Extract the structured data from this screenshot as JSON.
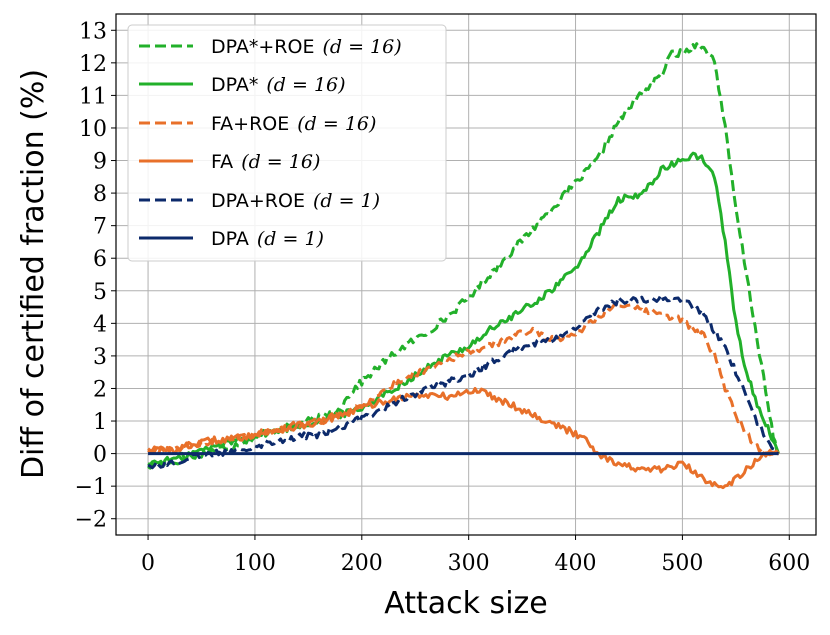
{
  "chart_data": {
    "type": "line",
    "title": "",
    "xlabel": "Attack size",
    "ylabel": "Diff of certified fraction (%)",
    "xlim": [
      -30,
      625
    ],
    "ylim": [
      -2.5,
      13.5
    ],
    "xticks": [
      0,
      100,
      200,
      300,
      400,
      500,
      600
    ],
    "xtick_labels": [
      "0",
      "100",
      "200",
      "300",
      "400",
      "500",
      "600"
    ],
    "yticks": [
      -2,
      -1,
      0,
      1,
      2,
      3,
      4,
      5,
      6,
      7,
      8,
      9,
      10,
      11,
      12,
      13
    ],
    "ytick_labels": [
      "−2",
      "−1",
      "0",
      "1",
      "2",
      "3",
      "4",
      "5",
      "6",
      "7",
      "8",
      "9",
      "10",
      "11",
      "12",
      "13"
    ],
    "grid": true,
    "legend_position": "top-left",
    "series": [
      {
        "name": "DPA*+ROE",
        "label_math": "(d = 16)",
        "color": "#22b02a",
        "dash": "dashed",
        "x": [
          0,
          20,
          40,
          60,
          80,
          100,
          120,
          140,
          160,
          180,
          190,
          200,
          220,
          240,
          260,
          280,
          300,
          320,
          340,
          360,
          380,
          400,
          420,
          440,
          460,
          480,
          490,
          500,
          510,
          515,
          520,
          530,
          540,
          550,
          560,
          570,
          580,
          585,
          590
        ],
        "y": [
          -0.4,
          -0.3,
          -0.1,
          0.1,
          0.25,
          0.5,
          0.7,
          0.9,
          1.1,
          1.4,
          1.9,
          2.2,
          2.8,
          3.3,
          3.7,
          4.2,
          4.8,
          5.5,
          6.2,
          6.9,
          7.6,
          8.3,
          9.0,
          10.2,
          11.0,
          11.6,
          12.3,
          12.3,
          12.5,
          12.6,
          12.4,
          12.1,
          10.0,
          7.5,
          5.5,
          3.5,
          1.5,
          0.5,
          0.0
        ]
      },
      {
        "name": "DPA*",
        "label_math": "(d = 16)",
        "color": "#22b02a",
        "dash": "solid",
        "x": [
          0,
          20,
          40,
          60,
          80,
          100,
          120,
          140,
          160,
          180,
          200,
          220,
          240,
          260,
          280,
          300,
          320,
          340,
          360,
          380,
          400,
          420,
          440,
          460,
          480,
          500,
          510,
          520,
          530,
          540,
          550,
          560,
          570,
          580,
          585,
          590
        ],
        "y": [
          -0.3,
          -0.2,
          0.0,
          0.2,
          0.4,
          0.55,
          0.7,
          0.85,
          1.0,
          1.2,
          1.4,
          1.8,
          2.2,
          2.6,
          3.0,
          3.3,
          3.8,
          4.2,
          4.6,
          5.1,
          5.7,
          6.7,
          7.8,
          7.9,
          8.7,
          9.0,
          9.2,
          9.0,
          8.5,
          6.5,
          4.0,
          2.5,
          1.5,
          0.8,
          0.3,
          0.0
        ]
      },
      {
        "name": "FA+ROE",
        "label_math": "(d = 16)",
        "color": "#e8702a",
        "dash": "dashed",
        "x": [
          0,
          20,
          40,
          60,
          80,
          100,
          120,
          140,
          160,
          180,
          200,
          220,
          240,
          260,
          280,
          300,
          320,
          340,
          360,
          380,
          400,
          420,
          440,
          460,
          480,
          500,
          520,
          530,
          540,
          550,
          560,
          570,
          580,
          590
        ],
        "y": [
          0.1,
          0.15,
          0.25,
          0.35,
          0.45,
          0.6,
          0.75,
          0.9,
          1.0,
          1.2,
          1.5,
          1.9,
          2.3,
          2.6,
          2.9,
          3.1,
          3.3,
          3.6,
          3.8,
          3.5,
          3.7,
          4.2,
          4.6,
          4.4,
          4.3,
          4.1,
          3.6,
          3.0,
          2.0,
          1.2,
          0.6,
          0.2,
          0.05,
          0.0
        ]
      },
      {
        "name": "FA",
        "label_math": "(d = 16)",
        "color": "#e8702a",
        "dash": "solid",
        "x": [
          0,
          20,
          40,
          60,
          80,
          100,
          120,
          140,
          160,
          180,
          200,
          220,
          240,
          260,
          280,
          300,
          310,
          320,
          340,
          360,
          380,
          400,
          410,
          420,
          440,
          460,
          480,
          500,
          520,
          540,
          560,
          570,
          580,
          590
        ],
        "y": [
          0.15,
          0.1,
          0.25,
          0.4,
          0.45,
          0.6,
          0.7,
          0.85,
          0.95,
          1.15,
          1.4,
          1.6,
          1.75,
          1.8,
          1.75,
          1.9,
          1.95,
          1.8,
          1.5,
          1.2,
          0.9,
          0.6,
          0.5,
          0.0,
          -0.3,
          -0.5,
          -0.5,
          -0.3,
          -0.8,
          -1.0,
          -0.5,
          -0.2,
          0.0,
          0.0
        ]
      },
      {
        "name": "DPA+ROE",
        "label_math": "(d = 1)",
        "color": "#0c2a6b",
        "dash": "dashed",
        "x": [
          0,
          20,
          40,
          60,
          80,
          100,
          120,
          140,
          160,
          180,
          200,
          220,
          240,
          260,
          280,
          300,
          320,
          340,
          360,
          380,
          400,
          420,
          440,
          460,
          480,
          500,
          520,
          540,
          560,
          570,
          580,
          590
        ],
        "y": [
          -0.35,
          -0.3,
          -0.15,
          0.0,
          0.1,
          0.25,
          0.4,
          0.5,
          0.6,
          0.8,
          1.1,
          1.4,
          1.7,
          2.0,
          2.2,
          2.4,
          2.8,
          3.1,
          3.4,
          3.5,
          3.8,
          4.4,
          4.7,
          4.7,
          4.8,
          4.7,
          4.3,
          3.2,
          1.8,
          1.0,
          0.3,
          0.0
        ]
      },
      {
        "name": "DPA",
        "label_math": "(d = 1)",
        "color": "#0c2a6b",
        "dash": "solid",
        "x": [
          0,
          590
        ],
        "y": [
          0.0,
          0.0
        ]
      }
    ]
  }
}
